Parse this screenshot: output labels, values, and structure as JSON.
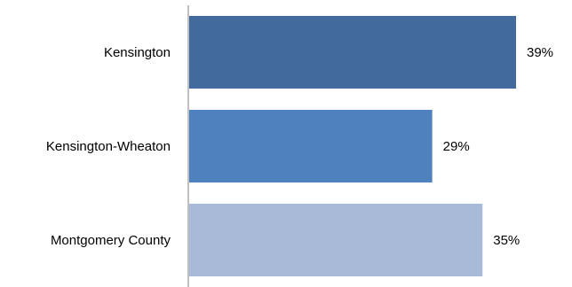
{
  "chart_data": {
    "type": "bar",
    "orientation": "horizontal",
    "categories": [
      "Kensington",
      "Kensington-Wheaton",
      "Montgomery County"
    ],
    "values": [
      39,
      29,
      35
    ],
    "value_labels": [
      "39%",
      "29%",
      "35%"
    ],
    "colors": [
      "#426a9c",
      "#4e81bd",
      "#a9bad9"
    ],
    "xlim": [
      0,
      42
    ],
    "title": "",
    "xlabel": "",
    "ylabel": "",
    "grid": false,
    "legend": "none"
  }
}
